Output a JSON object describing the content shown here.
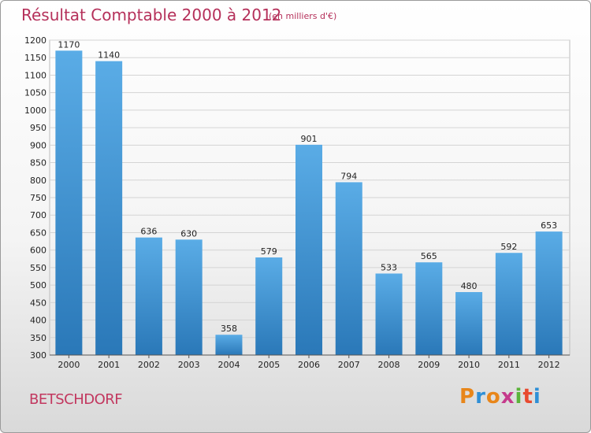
{
  "header": {
    "title": "Résultat Comptable 2000 à 2012",
    "unit": "(en milliers d'€)"
  },
  "footer": {
    "town": "BETSCHDORF",
    "brand": "Proxiti",
    "brand_colors": [
      "#e8861a",
      "#2f8fd6",
      "#e8861a",
      "#c53a8c",
      "#5bb33a",
      "#e84a2f",
      "#2f8fd6"
    ]
  },
  "chart_data": {
    "type": "bar",
    "categories": [
      "2000",
      "2001",
      "2002",
      "2003",
      "2004",
      "2005",
      "2006",
      "2007",
      "2008",
      "2009",
      "2010",
      "2011",
      "2012"
    ],
    "values": [
      1170,
      1140,
      636,
      630,
      358,
      579,
      901,
      794,
      533,
      565,
      480,
      592,
      653
    ],
    "title": "Résultat Comptable 2000 à 2012",
    "xlabel": "",
    "ylabel": "",
    "ylim": [
      300,
      1200
    ],
    "ytick_step": 50,
    "grid": true,
    "bar_color_top": "#5aace6",
    "bar_color_bottom": "#2a78b8"
  }
}
